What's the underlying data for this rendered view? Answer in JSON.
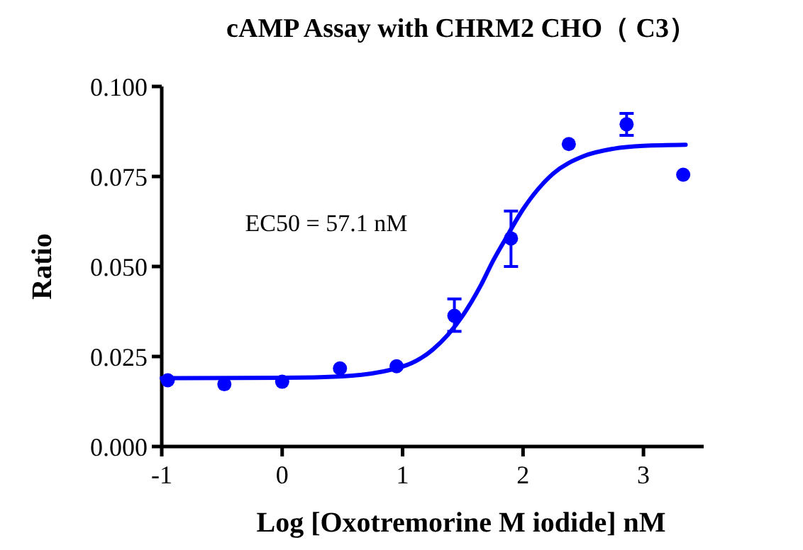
{
  "chart_data": {
    "type": "scatter",
    "title": "cAMP Assay with CHRM2 CHO（ C3）",
    "xlabel": "Log [Oxotremorine M iodide] nM",
    "ylabel": "Ratio",
    "annotations": [
      "EC50 = 57.1 nM"
    ],
    "xlim": [
      -1,
      3.5
    ],
    "ylim": [
      0,
      0.1
    ],
    "xticks": [
      {
        "value": -1,
        "label": "-1"
      },
      0,
      1,
      2,
      3
    ],
    "yticks": [
      {
        "value": 0,
        "label": "0.000"
      },
      {
        "value": 0.025,
        "label": "0.025"
      },
      {
        "value": 0.05,
        "label": "0.050"
      },
      {
        "value": 0.075,
        "label": "0.075"
      },
      {
        "value": 0.1,
        "label": "0.100"
      }
    ],
    "grid": false,
    "marker": "circle",
    "series": [
      {
        "color": "#0000ff",
        "x": [
          -0.95,
          -0.48,
          0,
          0.48,
          0.95,
          1.43,
          1.9,
          2.38,
          2.86,
          3.33
        ],
        "values": [
          0.0184,
          0.0173,
          0.018,
          0.0217,
          0.0223,
          0.0363,
          0.0578,
          0.084,
          0.0895,
          0.0755
        ],
        "errors": [
          null,
          null,
          null,
          null,
          null,
          [
            0.032,
            0.041
          ],
          [
            0.05,
            0.0654
          ],
          null,
          [
            0.0864,
            0.0925
          ],
          null
        ]
      },
      {
        "type": "line",
        "color": "#0000ff",
        "marker": "none",
        "line_style": "solid",
        "x": [
          -1,
          0,
          0.5,
          1,
          1.25,
          1.5,
          1.65,
          1.75,
          1.85,
          2,
          2.25,
          2.5,
          2.75,
          3,
          3.35
        ],
        "values": [
          0.019,
          0.0191,
          0.0195,
          0.0222,
          0.0269,
          0.0364,
          0.0448,
          0.0515,
          0.0574,
          0.0659,
          0.0758,
          0.0806,
          0.0827,
          0.0835,
          0.0838
        ]
      }
    ]
  }
}
